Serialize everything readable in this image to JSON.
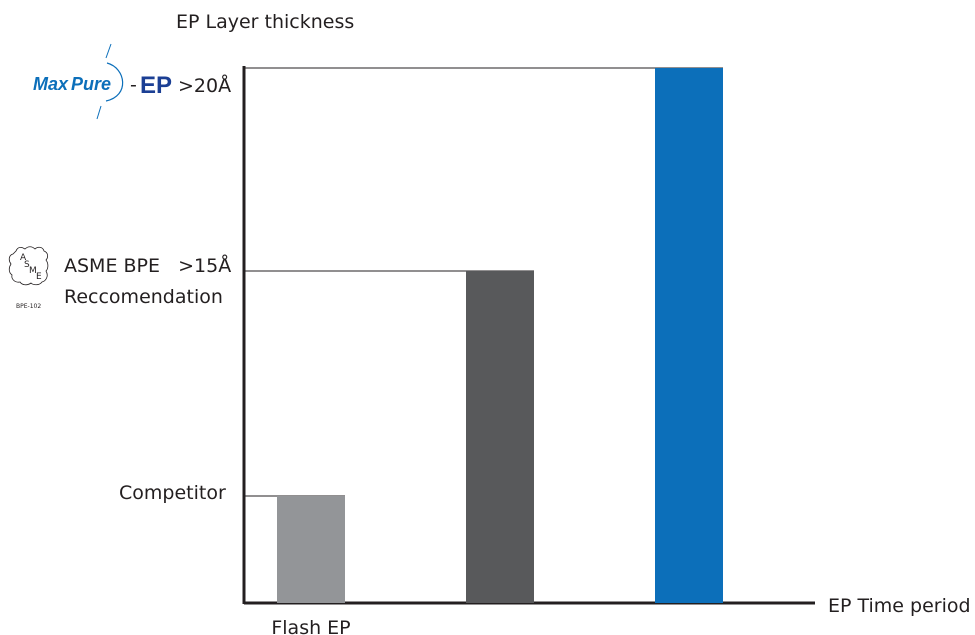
{
  "chart_data": {
    "type": "bar",
    "title": "EP Layer thickness",
    "xlabel": "EP Time period",
    "ylabel": "EP Layer thickness",
    "categories": [
      "Flash EP",
      "",
      ""
    ],
    "values": [
      1,
      3,
      4
    ],
    "y_levels": [
      {
        "label": "Competitor",
        "value": 1
      },
      {
        "label": "ASME BPE >15Å Reccomendation",
        "value": 3,
        "text_line1": "ASME BPE   >15Å",
        "text_line2": "Reccomendation"
      },
      {
        "label": "MaxPure-EP >20Å",
        "value": 4,
        "threshold": ">20Å"
      }
    ],
    "ylim": [
      0,
      4.6
    ],
    "grid": false,
    "colors": [
      "#939598",
      "#58595b",
      "#0c6fba"
    ]
  },
  "brand": {
    "max": "Max",
    "pure": "Pure",
    "dash": "-",
    "ep": "EP",
    "max_color": "#0c6fba",
    "pure_color": "#0c6fba",
    "ep_color": "#1b3f94"
  },
  "asme_logo": {
    "letters": [
      "A",
      "S",
      "M",
      "E"
    ],
    "caption": "BPE-102"
  }
}
